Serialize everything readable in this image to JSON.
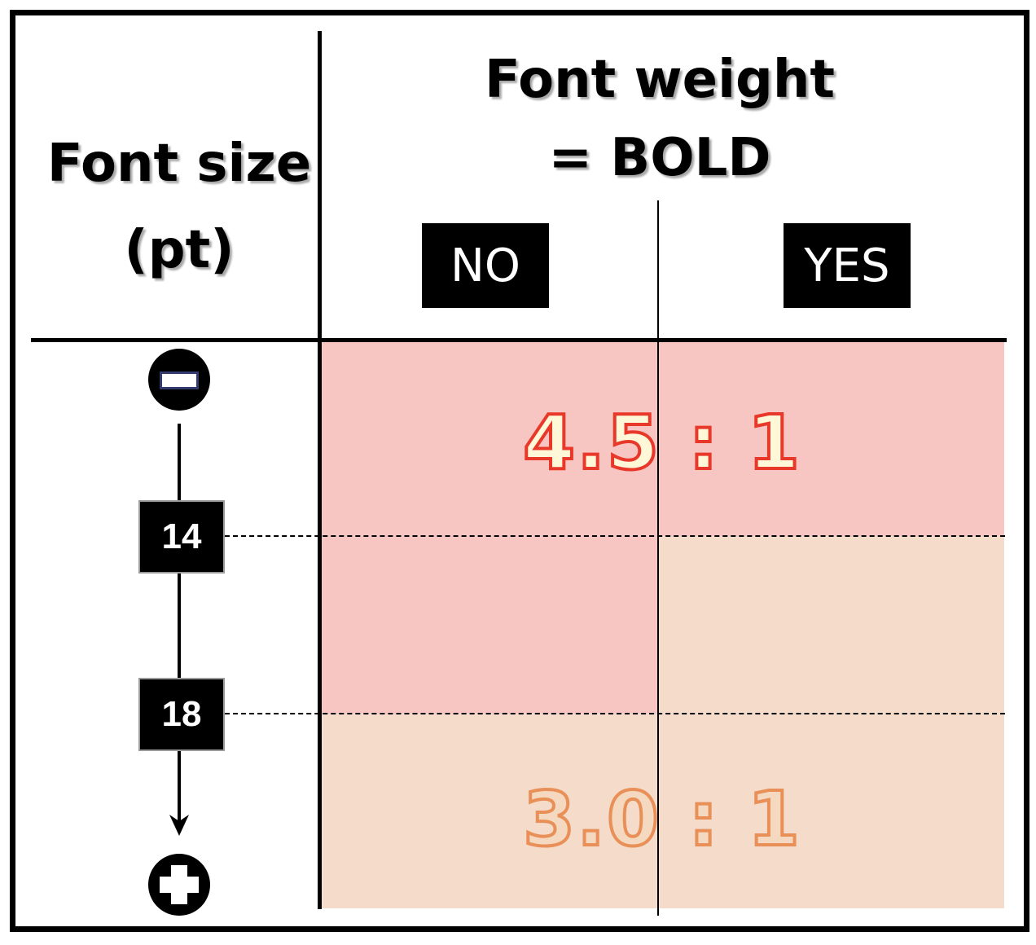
{
  "header": {
    "size_title_line1": "Font size",
    "size_title_line2": "(pt)",
    "weight_title_line1": "Font weight",
    "weight_title_line2": "= BOLD",
    "no_label": "NO",
    "yes_label": "YES"
  },
  "axis": {
    "tick_14": "14",
    "tick_18": "18",
    "top_icon": "minus-circle-icon",
    "bottom_icon": "plus-circle-icon"
  },
  "ratios": {
    "normal": "4.5 : 1",
    "large": "3.0 : 1"
  },
  "colors": {
    "normal_zone": "#f8c6c2",
    "large_zone": "#f5dcca",
    "normal_text": "#e8382a",
    "large_text": "#e89058",
    "normal_fill": "#fff8d8",
    "large_fill": "#f5d8c0"
  }
}
